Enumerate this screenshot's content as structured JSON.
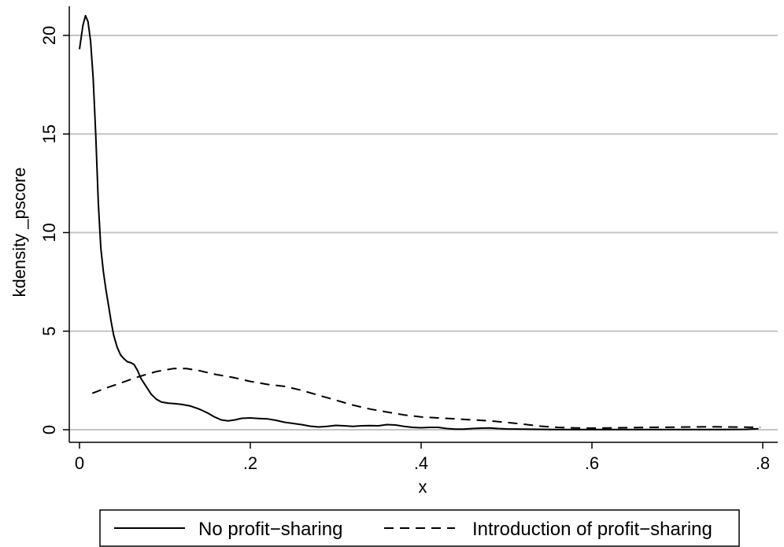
{
  "chart_data": {
    "type": "line",
    "xlabel": "x",
    "ylabel": "kdensity _pscore",
    "xlim": [
      0,
      0.8
    ],
    "ylim": [
      0,
      21
    ],
    "x_ticks": [
      {
        "value": 0,
        "label": "0"
      },
      {
        "value": 0.2,
        "label": ".2"
      },
      {
        "value": 0.4,
        "label": ".4"
      },
      {
        "value": 0.6,
        "label": ".6"
      },
      {
        "value": 0.8,
        "label": ".8"
      }
    ],
    "y_ticks": [
      {
        "value": 0,
        "label": "0"
      },
      {
        "value": 5,
        "label": "5"
      },
      {
        "value": 10,
        "label": "10"
      },
      {
        "value": 15,
        "label": "15"
      },
      {
        "value": 20,
        "label": "20"
      }
    ],
    "grid": "horizontal",
    "legend_position": "bottom",
    "series": [
      {
        "name": "No profit−sharing",
        "style": "solid",
        "color": "#000000",
        "points": [
          [
            0.0,
            19.3
          ],
          [
            0.004,
            20.5
          ],
          [
            0.007,
            21.0
          ],
          [
            0.01,
            20.7
          ],
          [
            0.013,
            19.7
          ],
          [
            0.016,
            17.8
          ],
          [
            0.019,
            15.0
          ],
          [
            0.022,
            11.5
          ],
          [
            0.025,
            9.2
          ],
          [
            0.028,
            8.0
          ],
          [
            0.031,
            7.1
          ],
          [
            0.034,
            6.3
          ],
          [
            0.037,
            5.5
          ],
          [
            0.04,
            4.8
          ],
          [
            0.044,
            4.2
          ],
          [
            0.048,
            3.8
          ],
          [
            0.052,
            3.6
          ],
          [
            0.056,
            3.45
          ],
          [
            0.06,
            3.4
          ],
          [
            0.064,
            3.3
          ],
          [
            0.068,
            3.0
          ],
          [
            0.072,
            2.6
          ],
          [
            0.078,
            2.2
          ],
          [
            0.084,
            1.8
          ],
          [
            0.09,
            1.55
          ],
          [
            0.096,
            1.4
          ],
          [
            0.104,
            1.35
          ],
          [
            0.112,
            1.32
          ],
          [
            0.12,
            1.28
          ],
          [
            0.13,
            1.2
          ],
          [
            0.14,
            1.05
          ],
          [
            0.15,
            0.85
          ],
          [
            0.158,
            0.65
          ],
          [
            0.166,
            0.5
          ],
          [
            0.174,
            0.45
          ],
          [
            0.182,
            0.5
          ],
          [
            0.19,
            0.58
          ],
          [
            0.2,
            0.6
          ],
          [
            0.21,
            0.57
          ],
          [
            0.22,
            0.55
          ],
          [
            0.23,
            0.48
          ],
          [
            0.24,
            0.38
          ],
          [
            0.25,
            0.32
          ],
          [
            0.26,
            0.26
          ],
          [
            0.27,
            0.18
          ],
          [
            0.28,
            0.14
          ],
          [
            0.29,
            0.17
          ],
          [
            0.3,
            0.22
          ],
          [
            0.31,
            0.2
          ],
          [
            0.32,
            0.17
          ],
          [
            0.33,
            0.2
          ],
          [
            0.34,
            0.21
          ],
          [
            0.35,
            0.2
          ],
          [
            0.36,
            0.26
          ],
          [
            0.37,
            0.24
          ],
          [
            0.38,
            0.17
          ],
          [
            0.39,
            0.12
          ],
          [
            0.4,
            0.1
          ],
          [
            0.41,
            0.12
          ],
          [
            0.42,
            0.12
          ],
          [
            0.43,
            0.06
          ],
          [
            0.44,
            0.03
          ],
          [
            0.45,
            0.03
          ],
          [
            0.46,
            0.06
          ],
          [
            0.47,
            0.08
          ],
          [
            0.48,
            0.09
          ],
          [
            0.49,
            0.06
          ],
          [
            0.5,
            0.04
          ],
          [
            0.52,
            0.03
          ],
          [
            0.54,
            0.02
          ],
          [
            0.56,
            0.01
          ],
          [
            0.6,
            0.01
          ],
          [
            0.65,
            0.01
          ],
          [
            0.7,
            0.01
          ],
          [
            0.75,
            0.01
          ],
          [
            0.78,
            0.02
          ],
          [
            0.795,
            0.05
          ]
        ]
      },
      {
        "name": "Introduction of profit−sharing",
        "style": "dashed",
        "color": "#000000",
        "points": [
          [
            0.015,
            1.85
          ],
          [
            0.03,
            2.1
          ],
          [
            0.05,
            2.4
          ],
          [
            0.07,
            2.7
          ],
          [
            0.09,
            2.95
          ],
          [
            0.11,
            3.1
          ],
          [
            0.125,
            3.1
          ],
          [
            0.14,
            3.0
          ],
          [
            0.16,
            2.8
          ],
          [
            0.18,
            2.65
          ],
          [
            0.2,
            2.45
          ],
          [
            0.22,
            2.3
          ],
          [
            0.24,
            2.2
          ],
          [
            0.26,
            2.0
          ],
          [
            0.28,
            1.75
          ],
          [
            0.3,
            1.5
          ],
          [
            0.32,
            1.25
          ],
          [
            0.34,
            1.05
          ],
          [
            0.36,
            0.9
          ],
          [
            0.38,
            0.75
          ],
          [
            0.4,
            0.65
          ],
          [
            0.42,
            0.6
          ],
          [
            0.44,
            0.55
          ],
          [
            0.46,
            0.5
          ],
          [
            0.48,
            0.45
          ],
          [
            0.5,
            0.37
          ],
          [
            0.52,
            0.28
          ],
          [
            0.54,
            0.18
          ],
          [
            0.56,
            0.12
          ],
          [
            0.58,
            0.09
          ],
          [
            0.6,
            0.08
          ],
          [
            0.62,
            0.09
          ],
          [
            0.65,
            0.11
          ],
          [
            0.7,
            0.13
          ],
          [
            0.74,
            0.15
          ],
          [
            0.78,
            0.13
          ],
          [
            0.797,
            0.12
          ]
        ]
      }
    ]
  }
}
